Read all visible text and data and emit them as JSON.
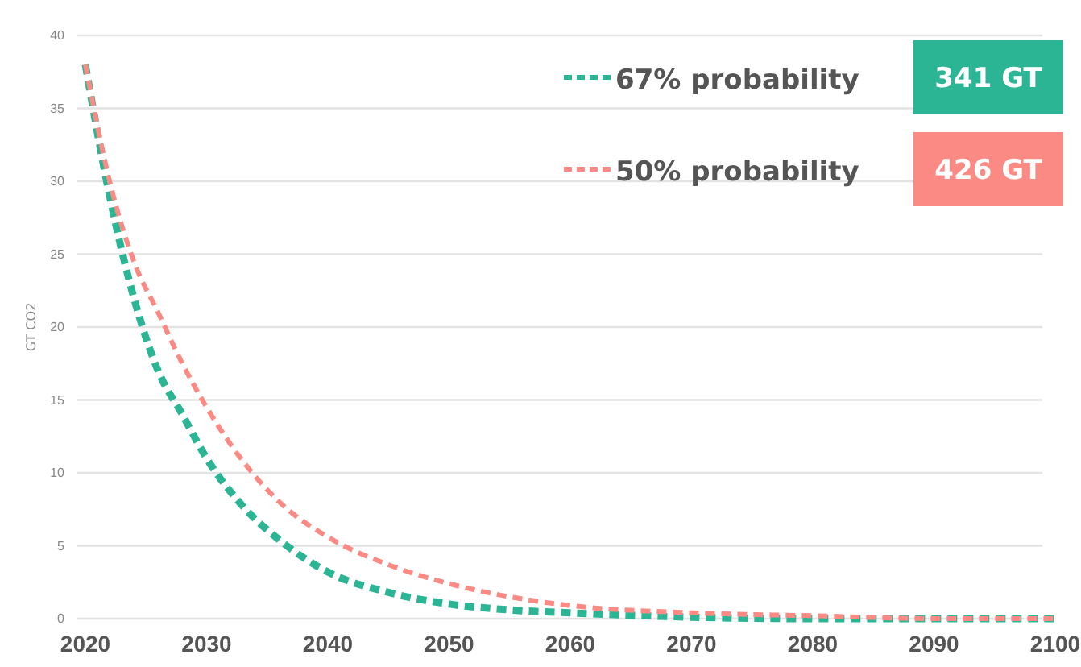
{
  "chart_data": {
    "type": "line",
    "ylabel": "GT CO2",
    "x": [
      2020,
      2022,
      2024,
      2026,
      2028,
      2030,
      2033,
      2036,
      2040,
      2045,
      2050,
      2055,
      2060,
      2070,
      2080,
      2090,
      2100
    ],
    "series": [
      {
        "name": "67% probability",
        "color": "#2bb594",
        "values": [
          38,
          29,
          22,
          17,
          14,
          11,
          7.7,
          5.4,
          3.2,
          1.8,
          1.0,
          0.6,
          0.4,
          0.1,
          0,
          0,
          0
        ]
      },
      {
        "name": "50% probability",
        "color": "#fb8a84",
        "values": [
          38,
          30,
          24.5,
          21,
          17.5,
          14.5,
          10.8,
          8,
          5.6,
          3.7,
          2.4,
          1.5,
          0.9,
          0.4,
          0.2,
          0,
          0
        ]
      }
    ],
    "annotations": [
      "341 GT",
      "426 GT"
    ],
    "xlim": [
      2020,
      2100
    ],
    "xticks": [
      2020,
      2030,
      2040,
      2050,
      2060,
      2070,
      2080,
      2090,
      2100
    ],
    "ylim": [
      0,
      40
    ],
    "yticks": [
      0,
      5,
      10,
      15,
      20,
      25,
      30,
      35,
      40
    ],
    "grid": "y",
    "legend": "top right",
    "line_style": "dashed",
    "marker": "none"
  }
}
